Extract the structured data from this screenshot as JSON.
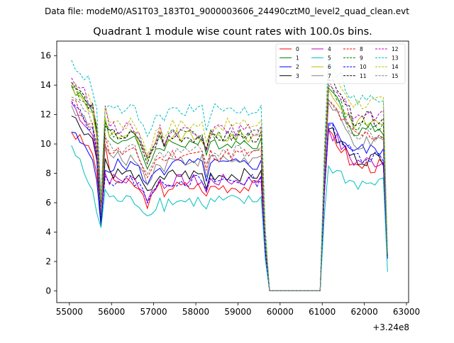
{
  "suptitle": "Data file: modeM0/AS1T03_183T01_9000003606_24490cztM0_level2_quad_clean.evt",
  "chart_data": {
    "type": "line",
    "title": "Quadrant 1 module wise count rates with 100.0s bins.",
    "xlabel": "",
    "ylabel": "",
    "x_offset_label": "+3.24e8",
    "x_offset": 324000000,
    "xlim": [
      54700,
      63050
    ],
    "ylim": [
      -0.8,
      17.0
    ],
    "x_ticks": [
      55000,
      56000,
      57000,
      58000,
      59000,
      60000,
      61000,
      62000,
      63000
    ],
    "x_tick_labels": [
      "55000",
      "56000",
      "57000",
      "58000",
      "59000",
      "60000",
      "61000",
      "62000",
      "63000"
    ],
    "y_ticks": [
      0,
      2,
      4,
      6,
      8,
      10,
      12,
      14,
      16
    ],
    "y_tick_labels": [
      "0",
      "2",
      "4",
      "6",
      "8",
      "10",
      "12",
      "14",
      "16"
    ],
    "legend_position": "top-right",
    "x_start": 55050,
    "bin_width": 100,
    "gap_count_rate": 0,
    "series": [
      {
        "name": "0",
        "color": "#ff0000",
        "dash": false,
        "level": 7.1,
        "first": 10.8,
        "pre_dip": 9.5,
        "dip": 5.3,
        "post": 10.0,
        "spike": 11.0,
        "post2": 8.5,
        "end": 2.4
      },
      {
        "name": "1",
        "color": "#008000",
        "dash": false,
        "level": 10.1,
        "first": 14.0,
        "pre_dip": 12.3,
        "dip": 6.0,
        "post": 11.6,
        "spike": 13.8,
        "post2": 11.0,
        "end": 2.4
      },
      {
        "name": "2",
        "color": "#0000ff",
        "dash": false,
        "level": 8.6,
        "first": 10.8,
        "pre_dip": 9.0,
        "dip": 4.4,
        "post": 8.2,
        "spike": 11.4,
        "post2": 9.6,
        "end": 2.3
      },
      {
        "name": "3",
        "color": "#000000",
        "dash": false,
        "level": 7.9,
        "first": 11.9,
        "pre_dip": 10.4,
        "dip": 4.6,
        "post": 9.0,
        "spike": 11.0,
        "post2": 9.0,
        "end": 2.3
      },
      {
        "name": "4",
        "color": "#bf00bf",
        "dash": false,
        "level": 7.5,
        "first": 12.8,
        "pre_dip": 10.6,
        "dip": 5.1,
        "post": 8.0,
        "spike": 11.0,
        "post2": 8.8,
        "end": 2.3
      },
      {
        "name": "5",
        "color": "#00bfbf",
        "dash": false,
        "level": 6.1,
        "first": 9.9,
        "pre_dip": 6.8,
        "dip": 4.3,
        "post": 6.9,
        "spike": 8.5,
        "post2": 7.3,
        "end": 1.3
      },
      {
        "name": "6",
        "color": "#bfbf00",
        "dash": false,
        "level": 10.5,
        "first": 13.9,
        "pre_dip": 12.0,
        "dip": 5.5,
        "post": 11.8,
        "spike": 13.7,
        "post2": 11.5,
        "end": 2.4
      },
      {
        "name": "7",
        "color": "#808080",
        "dash": false,
        "level": 8.9,
        "first": 12.6,
        "pre_dip": 11.0,
        "dip": 5.1,
        "post": 9.9,
        "spike": 12.8,
        "post2": 10.0,
        "end": 2.3
      },
      {
        "name": "8",
        "color": "#ff0000",
        "dash": true,
        "level": 9.3,
        "first": 13.0,
        "pre_dip": 11.2,
        "dip": 5.7,
        "post": 10.6,
        "spike": 13.0,
        "post2": 10.6,
        "end": 2.4
      },
      {
        "name": "9",
        "color": "#008000",
        "dash": true,
        "level": 10.6,
        "first": 13.9,
        "pre_dip": 12.4,
        "dip": 5.9,
        "post": 11.4,
        "spike": 14.0,
        "post2": 11.3,
        "end": 2.4
      },
      {
        "name": "10",
        "color": "#0000ff",
        "dash": true,
        "level": 7.5,
        "first": 12.9,
        "pre_dip": 10.8,
        "dip": 4.7,
        "post": 7.8,
        "spike": 11.3,
        "post2": 9.2,
        "end": 2.2
      },
      {
        "name": "11",
        "color": "#000000",
        "dash": true,
        "level": 10.5,
        "first": 14.2,
        "pre_dip": 12.4,
        "dip": 6.0,
        "post": 11.2,
        "spike": 14.3,
        "post2": 11.7,
        "end": 2.4
      },
      {
        "name": "12",
        "color": "#bf00bf",
        "dash": true,
        "level": 10.9,
        "first": 14.5,
        "pre_dip": 12.8,
        "dip": 6.2,
        "post": 12.6,
        "spike": 14.5,
        "post2": 11.8,
        "end": 2.4
      },
      {
        "name": "13",
        "color": "#00bfbf",
        "dash": true,
        "level": 12.3,
        "first": 15.7,
        "pre_dip": 13.9,
        "dip": 6.3,
        "post": 12.4,
        "spike": 16.0,
        "post2": 13.0,
        "end": 2.6
      },
      {
        "name": "14",
        "color": "#bfbf00",
        "dash": true,
        "level": 11.3,
        "first": 14.0,
        "pre_dip": 12.8,
        "dip": 6.2,
        "post": 12.5,
        "spike": 15.0,
        "post2": 12.8,
        "end": 2.5
      },
      {
        "name": "15",
        "color": "#808080",
        "dash": true,
        "level": 9.5,
        "first": 13.2,
        "pre_dip": 11.5,
        "dip": 5.6,
        "post": 10.4,
        "spike": 13.0,
        "post2": 10.6,
        "end": 2.3
      }
    ]
  }
}
